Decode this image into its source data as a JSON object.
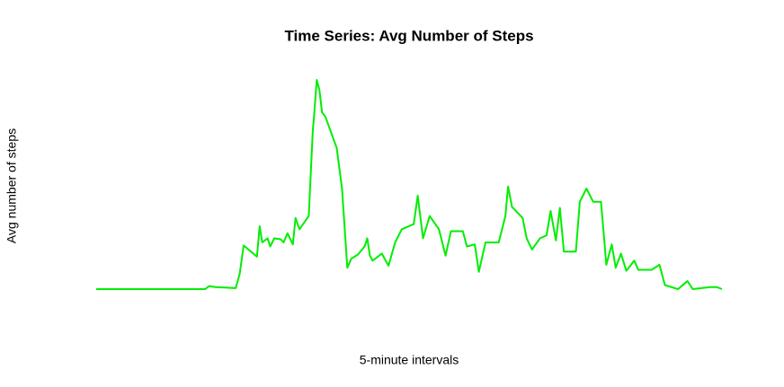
{
  "chart_data": {
    "type": "line",
    "title": "Time Series: Avg Number of Steps",
    "xlabel": "5-minute intervals",
    "ylabel": "Avg number of steps",
    "color": "#00ee00",
    "xlim": [
      0,
      2355
    ],
    "ylim": [
      0,
      206
    ],
    "x": [
      0,
      145,
      315,
      410,
      425,
      450,
      525,
      540,
      555,
      605,
      615,
      625,
      645,
      655,
      670,
      695,
      705,
      720,
      740,
      750,
      765,
      800,
      815,
      820,
      830,
      840,
      850,
      862,
      905,
      925,
      945,
      960,
      985,
      1010,
      1020,
      1030,
      1040,
      1075,
      1100,
      1125,
      1150,
      1195,
      1210,
      1230,
      1255,
      1290,
      1315,
      1335,
      1380,
      1395,
      1425,
      1440,
      1465,
      1515,
      1540,
      1550,
      1565,
      1605,
      1620,
      1640,
      1670,
      1695,
      1710,
      1730,
      1745,
      1760,
      1805,
      1820,
      1845,
      1870,
      1900,
      1920,
      1940,
      1955,
      1975,
      1995,
      2025,
      2040,
      2090,
      2120,
      2140,
      2190,
      2225,
      2245,
      2310,
      2335,
      2355
    ],
    "values": [
      0,
      0,
      0,
      0,
      3,
      2,
      1,
      15,
      43,
      32,
      62,
      46,
      50,
      42,
      50,
      49,
      46,
      55,
      44,
      70,
      59,
      72,
      156,
      170,
      206,
      196,
      174,
      170,
      139,
      99,
      21,
      30,
      34,
      42,
      50,
      33,
      28,
      35,
      23,
      46,
      59,
      64,
      92,
      50,
      72,
      59,
      33,
      57,
      57,
      42,
      44,
      17,
      46,
      46,
      72,
      101,
      81,
      70,
      50,
      39,
      50,
      53,
      77,
      48,
      80,
      37,
      37,
      86,
      99,
      86,
      86,
      24,
      44,
      21,
      35,
      18,
      28,
      19,
      19,
      24,
      4,
      0,
      8,
      0,
      2,
      2,
      0
    ]
  }
}
